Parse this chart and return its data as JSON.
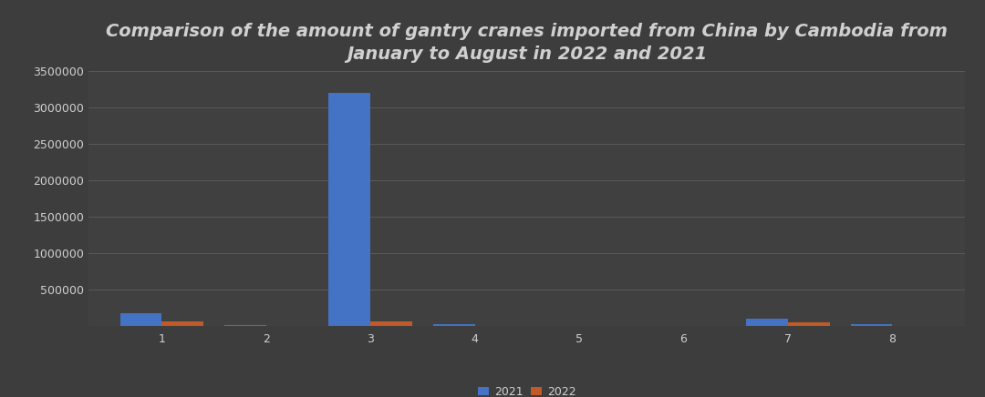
{
  "title": "Comparison of the amount of gantry cranes imported from China by Cambodia from\nJanuary to August in 2022 and 2021",
  "months": [
    1,
    2,
    3,
    4,
    5,
    6,
    7,
    8
  ],
  "values_2021": [
    175000,
    12000,
    3200000,
    18000,
    0,
    0,
    90000,
    22000
  ],
  "values_2022": [
    55000,
    0,
    58000,
    0,
    0,
    0,
    42000,
    0
  ],
  "color_2021": "#4472C4",
  "color_2022": "#C05A28",
  "background_color": "#3d3d3d",
  "axes_facecolor": "#404040",
  "text_color": "#d0d0d0",
  "grid_color": "#595959",
  "ylim": [
    0,
    3500000
  ],
  "yticks": [
    500000,
    1000000,
    1500000,
    2000000,
    2500000,
    3000000,
    3500000
  ],
  "legend_2021": "2021",
  "legend_2022": "2022",
  "bar_width": 0.4,
  "title_fontsize": 14,
  "tick_fontsize": 9,
  "legend_fontsize": 9
}
